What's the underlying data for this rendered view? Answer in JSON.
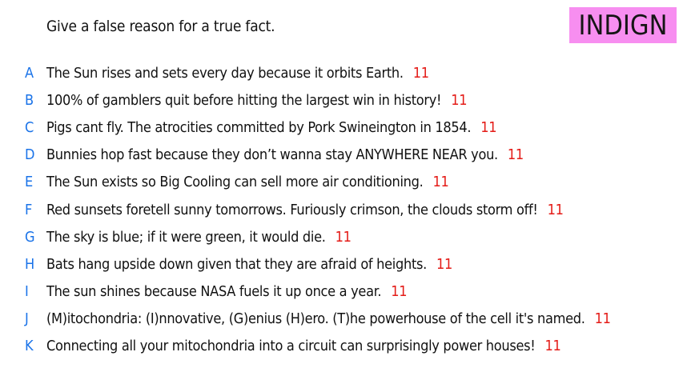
{
  "prompt": "Give a false reason for a true fact.",
  "badge": {
    "label": "INDIGN",
    "color": "#f78ef0"
  },
  "colors": {
    "letter": "#1a73e8",
    "votes": "#e41b17"
  },
  "answers": [
    {
      "letter": "A",
      "text": "The Sun rises and sets every day because it orbits Earth.",
      "votes": "11"
    },
    {
      "letter": "B",
      "text": "100% of gamblers quit before hitting the largest win in history!",
      "votes": "11"
    },
    {
      "letter": "C",
      "text": "Pigs cant fly. The atrocities committed by Pork Swineington in 1854.",
      "votes": "11"
    },
    {
      "letter": "D",
      "text": "Bunnies hop fast because they don’t wanna stay ANYWHERE NEAR you.",
      "votes": "11"
    },
    {
      "letter": "E",
      "text": "The Sun exists so Big Cooling can sell more air conditioning.",
      "votes": "11"
    },
    {
      "letter": "F",
      "text": "Red sunsets foretell sunny tomorrows. Furiously crimson, the clouds storm off!",
      "votes": "11"
    },
    {
      "letter": "G",
      "text": "The sky is blue; if it were green, it would die.",
      "votes": "11"
    },
    {
      "letter": "H",
      "text": "Bats hang upside down given that they are afraid of heights.",
      "votes": "11"
    },
    {
      "letter": "I",
      "text": "The sun shines because NASA fuels it up once a year.",
      "votes": "11"
    },
    {
      "letter": "J",
      "text": "(M)itochondria: (I)nnovative, (G)enius (H)ero. (T)he powerhouse of the cell it's named.",
      "votes": "11"
    },
    {
      "letter": "K",
      "text": "Connecting all your mitochondria into a circuit can surprisingly power houses!",
      "votes": "11"
    }
  ]
}
